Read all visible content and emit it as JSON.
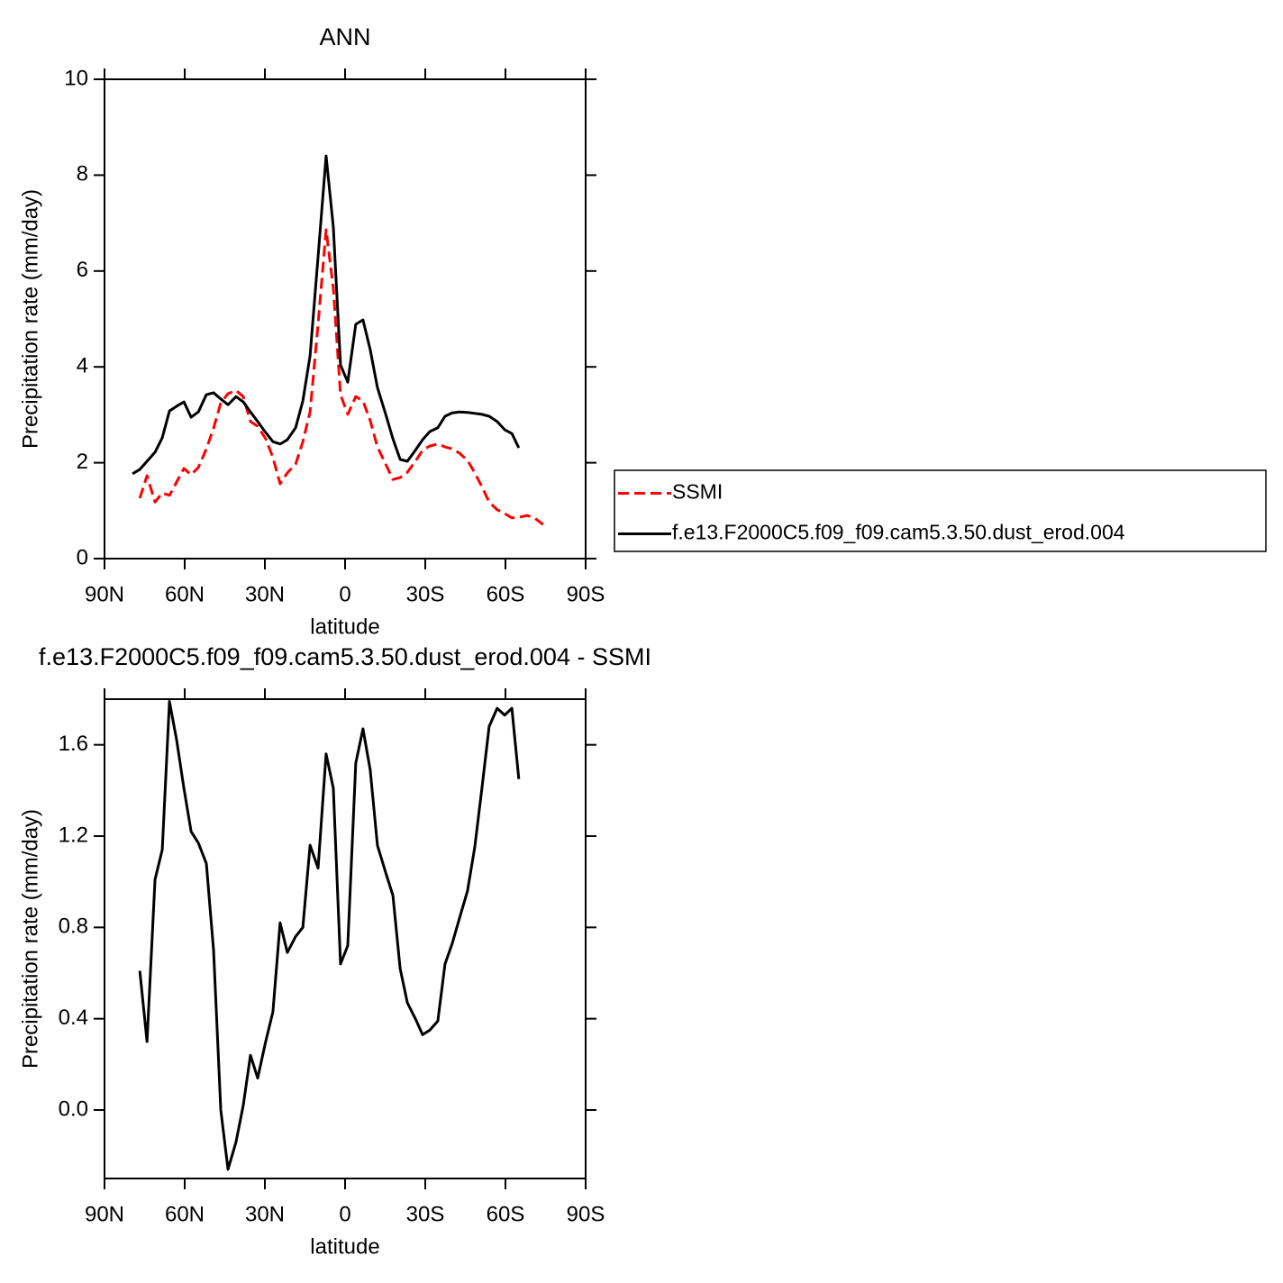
{
  "chart_data": [
    {
      "type": "line",
      "title": "ANN",
      "x_label": "latitude",
      "y_label": "Precipitation rate (mm/day)",
      "x": [
        79.5,
        76.8,
        74.1,
        71.1,
        68.4,
        65.7,
        63.0,
        60.3,
        57.6,
        54.9,
        51.9,
        49.2,
        46.5,
        43.8,
        40.8,
        38.1,
        35.4,
        32.7,
        29.7,
        27.0,
        24.3,
        21.6,
        18.5,
        15.8,
        13.1,
        10.1,
        7.1,
        4.4,
        1.7,
        -1.0,
        -4.0,
        -6.7,
        -9.4,
        -12.1,
        -15.2,
        -17.9,
        -20.6,
        -23.3,
        -26.3,
        -29.0,
        -31.7,
        -34.7,
        -37.4,
        -40.1,
        -42.8,
        -45.8,
        -48.5,
        -51.2,
        -53.9,
        -56.9,
        -59.7,
        -62.4,
        -65.0,
        -68.1,
        -70.8,
        -74.1
      ],
      "series": [
        {
          "name": "SSMI",
          "color": "#ff0000",
          "style": "dashed",
          "values": [
            null,
            1.26,
            1.73,
            1.18,
            1.37,
            1.32,
            1.6,
            1.88,
            1.75,
            1.9,
            2.29,
            2.72,
            3.25,
            3.44,
            3.51,
            3.38,
            2.86,
            2.76,
            2.5,
            2.11,
            1.56,
            1.79,
            1.97,
            2.44,
            3.06,
            4.89,
            6.86,
            5.64,
            3.42,
            3.01,
            3.38,
            3.29,
            2.88,
            2.33,
            1.97,
            1.65,
            1.69,
            1.8,
            2.03,
            2.26,
            2.35,
            2.39,
            2.33,
            2.29,
            2.2,
            2.05,
            1.79,
            1.5,
            1.18,
            1.02,
            0.94,
            0.85,
            0.86,
            0.9,
            0.85,
            0.71
          ]
        },
        {
          "name": "f.e13.F2000C5.f09_f09.cam5.3.50.dust_erod.004",
          "color": "#000000",
          "style": "solid",
          "values": [
            1.77,
            1.86,
            2.03,
            2.22,
            2.52,
            3.08,
            3.18,
            3.27,
            2.95,
            3.06,
            3.42,
            3.46,
            3.33,
            3.21,
            3.38,
            3.27,
            3.06,
            2.86,
            2.63,
            2.44,
            2.39,
            2.48,
            2.73,
            3.29,
            4.23,
            6.3,
            8.4,
            6.92,
            4.04,
            3.68,
            4.89,
            4.98,
            4.36,
            3.57,
            3.01,
            2.5,
            2.07,
            2.03,
            2.26,
            2.48,
            2.65,
            2.73,
            2.97,
            3.04,
            3.06,
            3.05,
            3.03,
            3.01,
            2.97,
            2.86,
            2.69,
            2.61,
            2.31,
            null,
            null,
            null
          ]
        }
      ],
      "xlim": [
        90,
        -90
      ],
      "xticks": [
        {
          "value": 90,
          "label": "90N"
        },
        {
          "value": 60,
          "label": "60N"
        },
        {
          "value": 30,
          "label": "30N"
        },
        0,
        {
          "value": -30,
          "label": "30S"
        },
        {
          "value": -60,
          "label": "60S"
        },
        {
          "value": -90,
          "label": "90S"
        }
      ],
      "ylim": [
        0,
        10
      ],
      "yticks": [
        0,
        2,
        4,
        6,
        8,
        10
      ],
      "legend": "right"
    },
    {
      "type": "line",
      "title": "f.e13.F2000C5.f09_f09.cam5.3.50.dust_erod.004 - SSMI",
      "x_label": "latitude",
      "y_label": "Precipitation rate (mm/day)",
      "x": [
        76.8,
        74.1,
        71.1,
        68.4,
        65.7,
        63.0,
        60.3,
        57.6,
        54.9,
        51.9,
        49.2,
        46.5,
        43.8,
        40.8,
        38.1,
        35.4,
        32.7,
        29.7,
        27.0,
        24.3,
        21.6,
        18.5,
        15.8,
        13.1,
        10.1,
        7.1,
        4.4,
        1.7,
        -1.0,
        -4.0,
        -6.7,
        -9.4,
        -12.1,
        -15.2,
        -17.9,
        -20.6,
        -23.3,
        -26.3,
        -29.0,
        -31.7,
        -34.7,
        -37.4,
        -40.1,
        -42.8,
        -45.8,
        -48.5,
        -51.2,
        -53.9,
        -56.9,
        -59.7,
        -62.4,
        -65.0
      ],
      "values": [
        0.61,
        0.3,
        1.01,
        1.14,
        1.79,
        1.62,
        1.41,
        1.22,
        1.17,
        1.08,
        0.7,
        0.0,
        -0.26,
        -0.14,
        0.02,
        0.24,
        0.14,
        0.3,
        0.43,
        0.82,
        0.69,
        0.76,
        0.8,
        1.16,
        1.06,
        1.56,
        1.41,
        0.64,
        0.72,
        1.52,
        1.67,
        1.49,
        1.16,
        1.04,
        0.94,
        0.62,
        0.47,
        0.4,
        0.33,
        0.35,
        0.39,
        0.64,
        0.73,
        0.84,
        0.96,
        1.15,
        1.41,
        1.68,
        1.76,
        1.73,
        1.76,
        1.45
      ],
      "color": "#000000",
      "style": "solid",
      "xlim": [
        90,
        -90
      ],
      "xticks": [
        {
          "value": 90,
          "label": "90N"
        },
        {
          "value": 60,
          "label": "60N"
        },
        {
          "value": 30,
          "label": "30N"
        },
        0,
        {
          "value": -30,
          "label": "30S"
        },
        {
          "value": -60,
          "label": "60S"
        },
        {
          "value": -90,
          "label": "90S"
        }
      ],
      "ylim": [
        -0.3,
        1.8
      ],
      "yticks": [
        {
          "value": 0,
          "label": "0.0"
        },
        0.4,
        0.8,
        1.2,
        1.6
      ]
    }
  ]
}
